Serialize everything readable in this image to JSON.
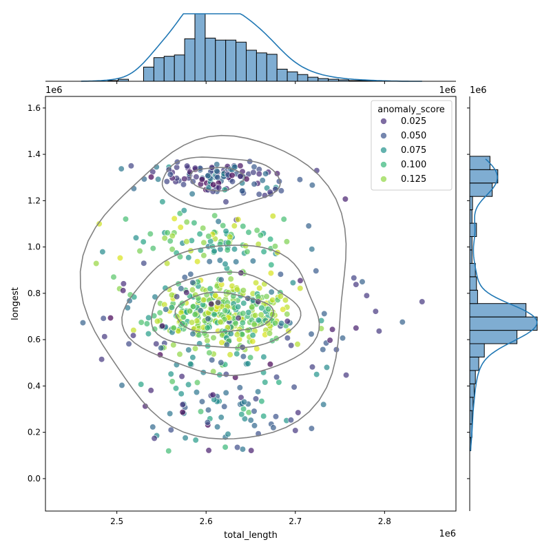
{
  "chart_data": {
    "type": "scatter",
    "title": "",
    "xlabel": "total_length",
    "ylabel": "longest",
    "x_offset_label": "1e6",
    "y_offset_label": "1e6",
    "top_margin_offset_label_left": "1e6",
    "top_margin_offset_label_right": "1e6",
    "right_margin_offset_label": "1e6",
    "xlim": [
      2.42,
      2.88
    ],
    "ylim": [
      -0.14,
      1.65
    ],
    "x_ticks": [
      2.5,
      2.6,
      2.7,
      2.8
    ],
    "x_tick_labels": [
      "2.5",
      "2.6",
      "2.7",
      "2.8"
    ],
    "y_ticks": [
      0.0,
      0.2,
      0.4,
      0.6,
      0.8,
      1.0,
      1.2,
      1.4,
      1.6
    ],
    "y_tick_labels": [
      "0.0",
      "0.2",
      "0.4",
      "0.6",
      "0.8",
      "1.0",
      "1.2",
      "1.4",
      "1.6"
    ],
    "grid": false,
    "legend": {
      "title": "anomaly_score",
      "placement": "top-right",
      "entries": [
        {
          "label": "0.025",
          "color": "#472d7b"
        },
        {
          "label": "0.050",
          "color": "#3b528b"
        },
        {
          "label": "0.075",
          "color": "#21918c"
        },
        {
          "label": "0.100",
          "color": "#35b779"
        },
        {
          "label": "0.125",
          "color": "#90d743"
        }
      ]
    },
    "colormap": [
      "#440154",
      "#472d7b",
      "#3b528b",
      "#2c728e",
      "#21918c",
      "#28ae80",
      "#5ec962",
      "#addc30",
      "#d8e219"
    ],
    "score_range": [
      0.01,
      0.14
    ],
    "point_alpha": 0.7,
    "clusters": [
      {
        "cx": 2.618,
        "cy": 0.705,
        "sx": 0.04,
        "sy": 0.078,
        "n": 360,
        "score_mean": 0.112,
        "score_sd": 0.018
      },
      {
        "cx": 2.615,
        "cy": 0.34,
        "sx": 0.04,
        "sy": 0.105,
        "n": 85,
        "score_mean": 0.062,
        "score_sd": 0.022
      },
      {
        "cx": 2.605,
        "cy": 1.015,
        "sx": 0.052,
        "sy": 0.075,
        "n": 95,
        "score_mean": 0.095,
        "score_sd": 0.022
      },
      {
        "cx": 2.612,
        "cy": 1.3,
        "sx": 0.042,
        "sy": 0.038,
        "n": 125,
        "score_mean": 0.04,
        "score_sd": 0.02
      },
      {
        "cx": 2.625,
        "cy": 0.68,
        "sx": 0.085,
        "sy": 0.19,
        "n": 70,
        "score_mean": 0.05,
        "score_sd": 0.02
      }
    ],
    "outlier_points": [
      {
        "x": 2.462,
        "y": 0.673,
        "s": 0.05
      },
      {
        "x": 2.483,
        "y": 0.515,
        "s": 0.03
      },
      {
        "x": 2.485,
        "y": 0.692,
        "s": 0.04
      },
      {
        "x": 2.507,
        "y": 0.812,
        "s": 0.02
      },
      {
        "x": 2.542,
        "y": 0.174,
        "s": 0.03
      },
      {
        "x": 2.603,
        "y": 0.122,
        "s": 0.02
      },
      {
        "x": 2.635,
        "y": 0.135,
        "s": 0.04
      },
      {
        "x": 2.7,
        "y": 0.208,
        "s": 0.03
      },
      {
        "x": 2.757,
        "y": 0.447,
        "s": 0.03
      },
      {
        "x": 2.768,
        "y": 0.65,
        "s": 0.02
      },
      {
        "x": 2.768,
        "y": 0.838,
        "s": 0.03
      },
      {
        "x": 2.775,
        "y": 0.85,
        "s": 0.05
      },
      {
        "x": 2.78,
        "y": 0.79,
        "s": 0.03
      },
      {
        "x": 2.79,
        "y": 0.722,
        "s": 0.03
      },
      {
        "x": 2.82,
        "y": 0.676,
        "s": 0.05
      },
      {
        "x": 2.842,
        "y": 0.764,
        "s": 0.03
      },
      {
        "x": 2.724,
        "y": 1.33,
        "s": 0.03
      },
      {
        "x": 2.719,
        "y": 1.267,
        "s": 0.05
      },
      {
        "x": 2.715,
        "y": 1.091,
        "s": 0.05
      },
      {
        "x": 2.753,
        "y": 0.607,
        "s": 0.05
      },
      {
        "x": 2.746,
        "y": 0.557,
        "s": 0.04
      }
    ],
    "kde_contours": [
      {
        "cx": 2.612,
        "cy": 1.295,
        "rx": 0.03,
        "ry": 0.05
      },
      {
        "cx": 2.615,
        "cy": 1.28,
        "rx": 0.066,
        "ry": 0.11
      },
      {
        "cx": 2.619,
        "cy": 0.715,
        "rx": 0.055,
        "ry": 0.085
      },
      {
        "cx": 2.62,
        "cy": 0.72,
        "rx": 0.083,
        "ry": 0.162
      },
      {
        "cx": 2.62,
        "cy": 0.725,
        "rx": 0.108,
        "ry": 0.28
      },
      {
        "cx": 2.617,
        "cy": 0.825,
        "rx": 0.147,
        "ry": 0.655
      }
    ],
    "x_marginal": {
      "bin_start": 2.53,
      "bin_width": 0.0115,
      "counts": [
        21,
        35,
        37,
        39,
        63,
        100,
        64,
        61,
        61,
        58,
        46,
        42,
        40,
        18,
        14,
        10,
        6,
        4,
        3,
        2,
        1,
        1,
        1
      ],
      "extra_left_bins": [
        {
          "start": 2.49,
          "width": 0.0115,
          "count": 1
        },
        {
          "start": 2.5015,
          "width": 0.0115,
          "count": 3
        }
      ],
      "kde_range": [
        2.46,
        2.842
      ]
    },
    "y_marginal": {
      "bin_start": 0.12,
      "bin_width": 0.0578,
      "counts": [
        2,
        4,
        4,
        6,
        8,
        10,
        16,
        26,
        84,
        120,
        100,
        14,
        12,
        10,
        4,
        4,
        12,
        4,
        5,
        40,
        50,
        36
      ],
      "kde_range": [
        0.12,
        1.38
      ]
    }
  }
}
